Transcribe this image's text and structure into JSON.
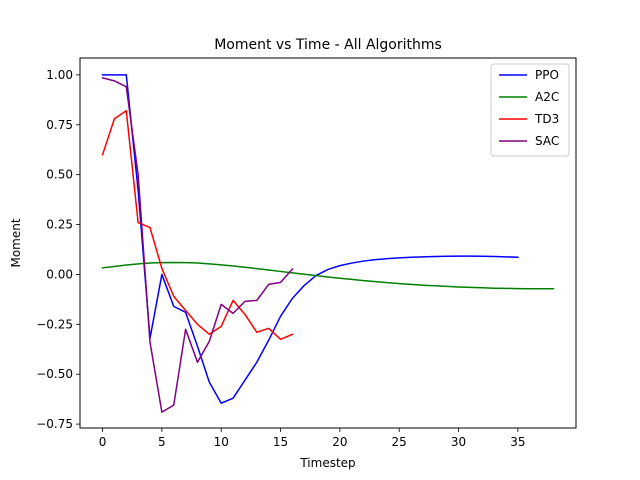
{
  "chart_data": {
    "type": "line",
    "title": "Moment vs Time - All Algorithms",
    "xlabel": "Timestep",
    "ylabel": "Moment",
    "xlim": [
      -1.9,
      39.9
    ],
    "ylim": [
      -0.7695,
      1.0845
    ],
    "xticks": [
      0,
      5,
      10,
      15,
      20,
      25,
      30,
      35
    ],
    "yticks": [
      -0.75,
      -0.5,
      -0.25,
      0.0,
      0.25,
      0.5,
      0.75,
      1.0
    ],
    "ytick_labels": [
      "−0.75",
      "−0.50",
      "−0.25",
      "0.00",
      "0.25",
      "0.50",
      "0.75",
      "1.00"
    ],
    "grid": false,
    "legend_position": "top-right",
    "colors": {
      "PPO": "#0000ff",
      "A2C": "#008000",
      "TD3": "#ff0000",
      "SAC": "#800080"
    },
    "series": [
      {
        "name": "PPO",
        "color": "#0000ff",
        "x": [
          0,
          1,
          2,
          3,
          4,
          5,
          6,
          7,
          8,
          9,
          10,
          11,
          12,
          13,
          14,
          15,
          16,
          17,
          18,
          19,
          20,
          21,
          22,
          23,
          24,
          25,
          26,
          27,
          28,
          29,
          30,
          31,
          32,
          33,
          34,
          35
        ],
        "y": [
          1.0,
          1.0,
          1.0,
          0.42,
          -0.32,
          0.0,
          -0.16,
          -0.19,
          -0.36,
          -0.54,
          -0.645,
          -0.62,
          -0.53,
          -0.44,
          -0.33,
          -0.21,
          -0.12,
          -0.055,
          -0.005,
          0.025,
          0.044,
          0.057,
          0.067,
          0.074,
          0.079,
          0.083,
          0.086,
          0.088,
          0.09,
          0.091,
          0.092,
          0.092,
          0.091,
          0.09,
          0.088,
          0.086
        ]
      },
      {
        "name": "A2C",
        "color": "#008000",
        "x": [
          0,
          1,
          2,
          3,
          4,
          5,
          6,
          7,
          8,
          9,
          10,
          11,
          12,
          13,
          14,
          15,
          16,
          17,
          18,
          19,
          20,
          21,
          22,
          23,
          24,
          25,
          26,
          27,
          28,
          29,
          30,
          31,
          32,
          33,
          34,
          35,
          36,
          37,
          38
        ],
        "y": [
          0.033,
          0.04,
          0.047,
          0.053,
          0.057,
          0.059,
          0.06,
          0.059,
          0.057,
          0.053,
          0.048,
          0.042,
          0.036,
          0.029,
          0.022,
          0.015,
          0.008,
          0.001,
          -0.006,
          -0.013,
          -0.019,
          -0.025,
          -0.031,
          -0.036,
          -0.041,
          -0.046,
          -0.05,
          -0.054,
          -0.057,
          -0.06,
          -0.063,
          -0.065,
          -0.067,
          -0.069,
          -0.07,
          -0.071,
          -0.072,
          -0.072,
          -0.072
        ]
      },
      {
        "name": "TD3",
        "color": "#ff0000",
        "x": [
          0,
          1,
          2,
          3,
          4,
          5,
          6,
          7,
          8,
          9,
          10,
          11,
          12,
          13,
          14,
          15,
          16
        ],
        "y": [
          0.6,
          0.78,
          0.82,
          0.26,
          0.235,
          0.03,
          -0.11,
          -0.18,
          -0.25,
          -0.3,
          -0.26,
          -0.13,
          -0.2,
          -0.29,
          -0.27,
          -0.325,
          -0.3
        ]
      },
      {
        "name": "SAC",
        "color": "#800080",
        "x": [
          0,
          1,
          2,
          3,
          4,
          5,
          6,
          7,
          8,
          9,
          10,
          11,
          12,
          13,
          14,
          15,
          16
        ],
        "y": [
          0.985,
          0.97,
          0.94,
          0.5,
          -0.34,
          -0.69,
          -0.655,
          -0.275,
          -0.44,
          -0.335,
          -0.15,
          -0.195,
          -0.135,
          -0.13,
          -0.05,
          -0.04,
          0.027
        ]
      }
    ]
  }
}
